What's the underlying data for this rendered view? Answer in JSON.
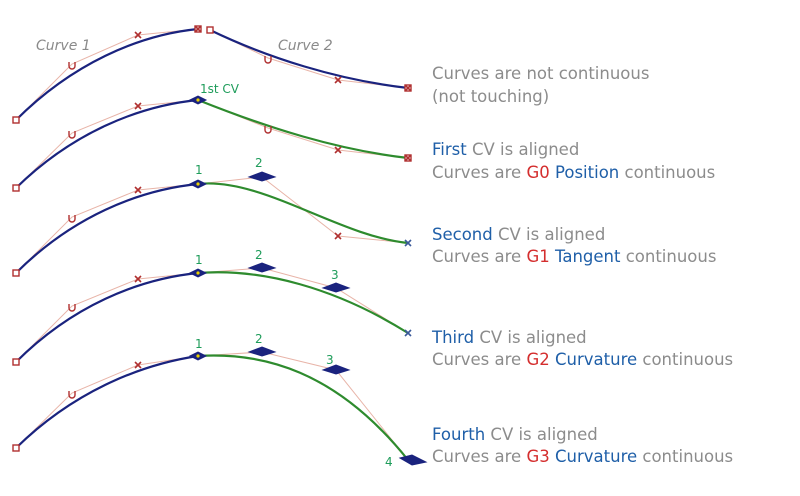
{
  "labels": {
    "curve1": "Curve 1",
    "curve2": "Curve 2",
    "first_cv": "1st CV",
    "cv1": "1",
    "cv2": "2",
    "cv3": "3",
    "cv4": "4"
  },
  "captions": [
    {
      "line1": "Curves are not continuous",
      "line2": "(not touching)"
    },
    {
      "l1_a": "First",
      "l1_b": " CV is aligned",
      "l2_a": "Curves are ",
      "l2_g": "G0",
      "l2_b": " ",
      "l2_type": "Position",
      "l2_c": " continuous"
    },
    {
      "l1_a": "Second",
      "l1_b": " CV is aligned",
      "l2_a": "Curves are ",
      "l2_g": "G1",
      "l2_b": " ",
      "l2_type": "Tangent",
      "l2_c": " continuous"
    },
    {
      "l1_a": "Third",
      "l1_b": " CV is aligned",
      "l2_a": "Curves are ",
      "l2_g": "G2",
      "l2_b": " ",
      "l2_type": "Curvature",
      "l2_c": " continuous"
    },
    {
      "l1_a": "Fourth",
      "l1_b": " CV is aligned",
      "l2_a": "Curves are ",
      "l2_g": "G3",
      "l2_b": " ",
      "l2_type": "Curvature",
      "l2_c": " continuous"
    }
  ],
  "colors": {
    "curve1": "#1a237e",
    "curve2_aligned": "#2e8b2e",
    "emphasis_blue": "#1f5fa8",
    "emphasis_red": "#d42e2e",
    "caption_gray": "#8c8c8c",
    "cv_number_green": "#1e9c5a"
  }
}
